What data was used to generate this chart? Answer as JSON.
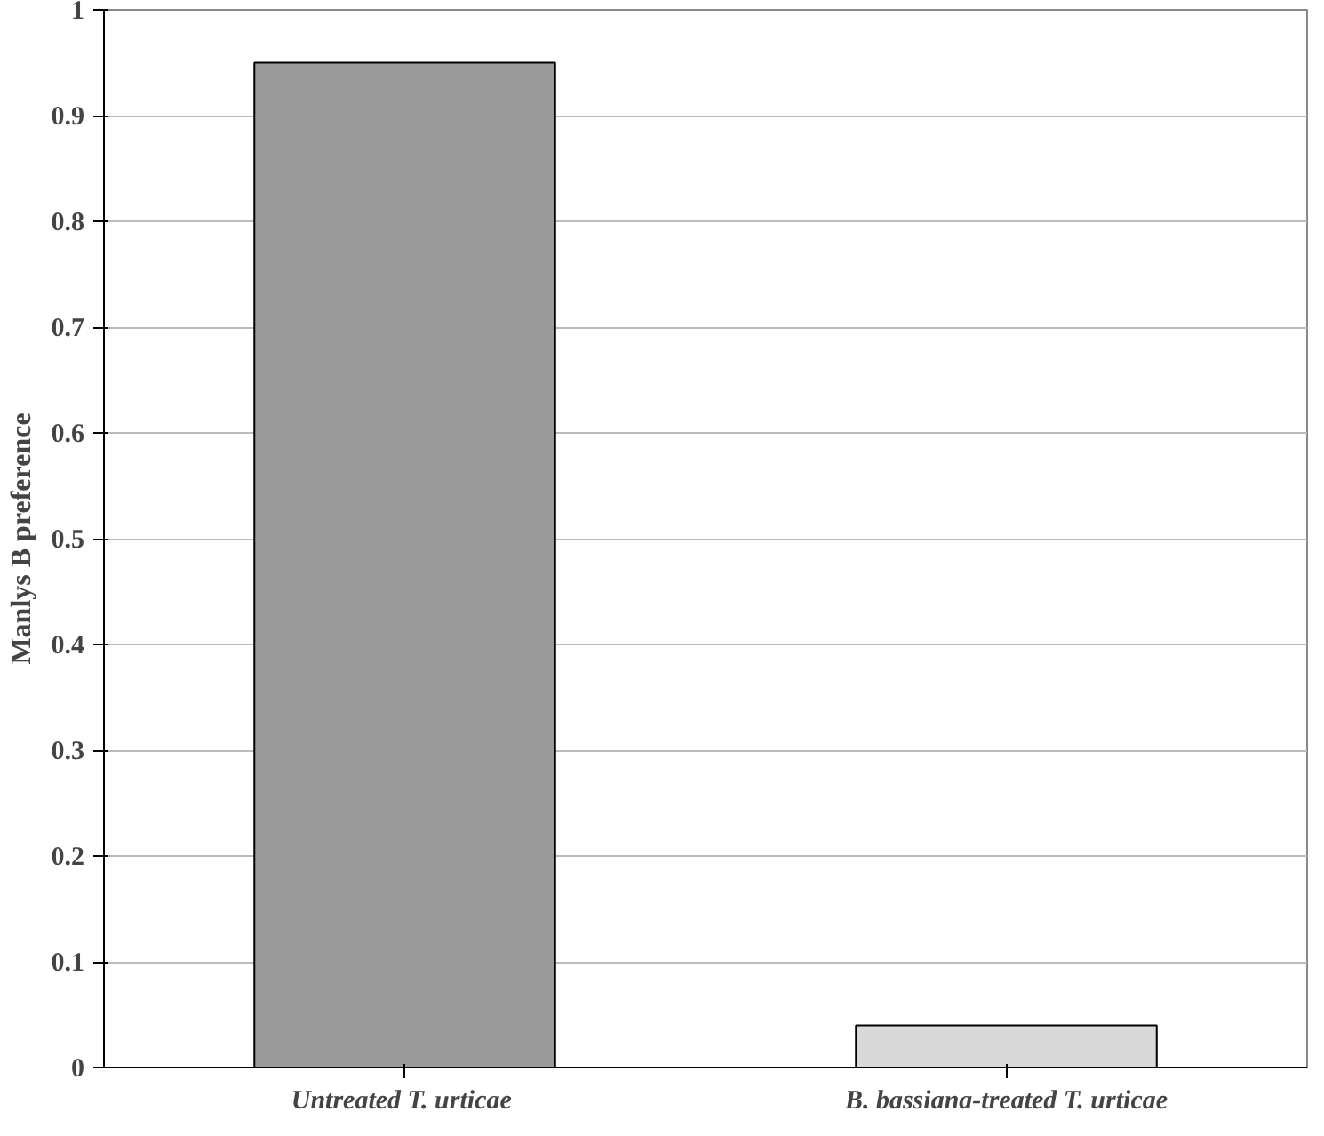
{
  "chart_data": {
    "type": "bar",
    "ylabel": "Manlys B preference",
    "categories": [
      "Untreated  T. urticae",
      "B. bassiana-treated T. urticae"
    ],
    "values": [
      0.95,
      0.04
    ],
    "colors": [
      "#9a9a9a",
      "#d9d9d9"
    ],
    "ylim": [
      0,
      1
    ],
    "yticks": [
      0,
      0.1,
      0.2,
      0.3,
      0.4,
      0.5,
      0.6,
      0.7,
      0.8,
      0.9,
      1
    ],
    "grid": "y"
  }
}
